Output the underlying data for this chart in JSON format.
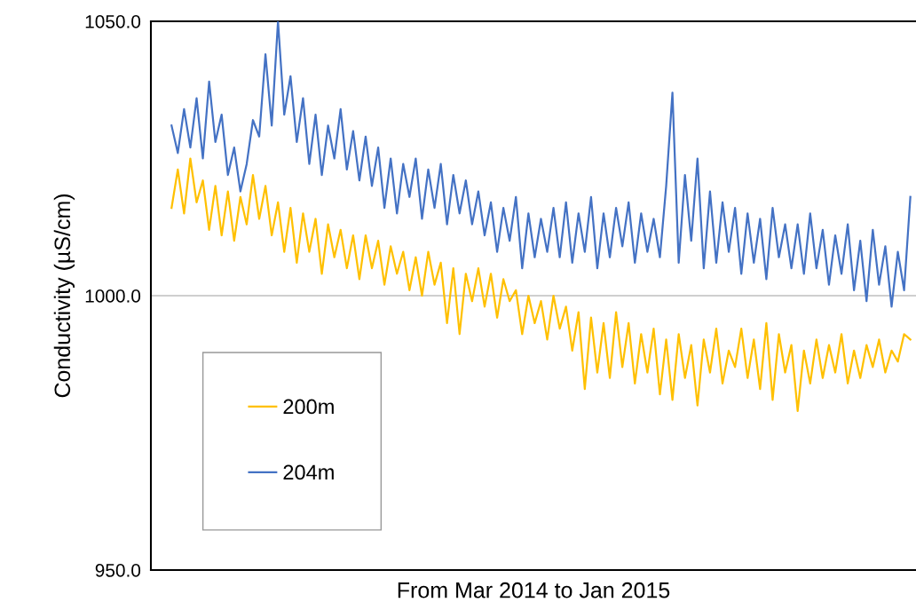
{
  "chart_data": {
    "type": "line",
    "xlabel": "From Mar 2014 to Jan 2015",
    "ylabel": "Conductivity (µS/cm)",
    "categories": [
      null,
      null,
      null,
      null,
      null,
      null,
      null,
      null,
      null,
      null,
      null,
      null,
      null,
      null,
      null,
      null,
      null,
      null,
      null,
      null,
      null,
      null,
      null,
      null,
      null,
      null,
      null,
      null,
      null,
      null,
      null,
      null,
      null,
      null,
      null,
      null,
      null,
      null,
      null,
      null,
      null,
      null,
      null,
      null,
      null,
      null,
      null,
      null,
      null,
      null,
      null,
      null,
      null,
      null,
      null,
      null,
      null,
      null,
      null,
      null,
      null,
      null,
      null,
      null,
      null,
      null,
      null,
      null,
      null,
      null,
      null,
      null,
      null,
      null,
      null,
      null,
      null,
      null,
      null,
      null,
      null,
      null,
      null,
      null,
      null,
      null,
      null,
      null,
      null,
      null,
      null,
      null,
      null,
      null,
      null,
      null,
      null,
      null,
      null,
      null,
      null,
      null,
      null,
      null,
      null,
      null,
      null,
      null,
      null,
      null,
      null,
      null,
      null,
      null,
      null,
      null,
      null,
      null,
      null
    ],
    "series": [
      {
        "name": "200m",
        "color": "#ffc000",
        "values": [
          1016,
          1023,
          1015,
          1025,
          1017,
          1021,
          1012,
          1020,
          1011,
          1019,
          1010,
          1018,
          1013,
          1022,
          1014,
          1020,
          1011,
          1017,
          1008,
          1016,
          1006,
          1015,
          1008,
          1014,
          1004,
          1013,
          1007,
          1012,
          1005,
          1011,
          1003,
          1011,
          1005,
          1010,
          1002,
          1009,
          1004,
          1008,
          1001,
          1007,
          1000,
          1008,
          1002,
          1006,
          995,
          1005,
          993,
          1004,
          999,
          1005,
          998,
          1004,
          996,
          1003,
          999,
          1001,
          993,
          1000,
          995,
          999,
          992,
          1000,
          994,
          998,
          990,
          997,
          983,
          996,
          986,
          995,
          985,
          997,
          987,
          995,
          984,
          993,
          986,
          994,
          982,
          992,
          981,
          993,
          985,
          991,
          980,
          992,
          986,
          994,
          984,
          990,
          987,
          994,
          985,
          992,
          983,
          995,
          981,
          993,
          986,
          991,
          979,
          990,
          984,
          992,
          985,
          991,
          986,
          993,
          984,
          990,
          985,
          991,
          987,
          992,
          986,
          990,
          988,
          993,
          992
        ]
      },
      {
        "name": "204m",
        "color": "#4472c4",
        "values": [
          1031,
          1026,
          1034,
          1027,
          1036,
          1025,
          1039,
          1028,
          1033,
          1022,
          1027,
          1019,
          1024,
          1032,
          1029,
          1044,
          1031,
          1050,
          1033,
          1040,
          1028,
          1036,
          1024,
          1033,
          1022,
          1031,
          1025,
          1034,
          1023,
          1030,
          1021,
          1029,
          1020,
          1027,
          1016,
          1025,
          1015,
          1024,
          1018,
          1025,
          1014,
          1023,
          1016,
          1024,
          1013,
          1022,
          1015,
          1021,
          1013,
          1019,
          1011,
          1017,
          1008,
          1016,
          1010,
          1018,
          1005,
          1015,
          1007,
          1014,
          1008,
          1016,
          1007,
          1017,
          1006,
          1015,
          1008,
          1018,
          1005,
          1015,
          1007,
          1016,
          1009,
          1017,
          1006,
          1015,
          1008,
          1014,
          1007,
          1020,
          1037,
          1006,
          1022,
          1010,
          1025,
          1005,
          1019,
          1006,
          1017,
          1008,
          1016,
          1004,
          1015,
          1006,
          1014,
          1003,
          1016,
          1007,
          1013,
          1005,
          1013,
          1004,
          1015,
          1005,
          1012,
          1002,
          1011,
          1004,
          1013,
          1001,
          1010,
          999,
          1012,
          1002,
          1009,
          998,
          1008,
          1001,
          1018
        ]
      }
    ],
    "ylim": [
      950,
      1050
    ],
    "yticks": [
      {
        "value": 950,
        "label": "950.0"
      },
      {
        "value": 1000,
        "label": "1000.0"
      },
      {
        "value": 1050,
        "label": "1050.0"
      }
    ],
    "grid": "y",
    "legend": "bottom left",
    "marker": "none",
    "line_style": "solid"
  }
}
